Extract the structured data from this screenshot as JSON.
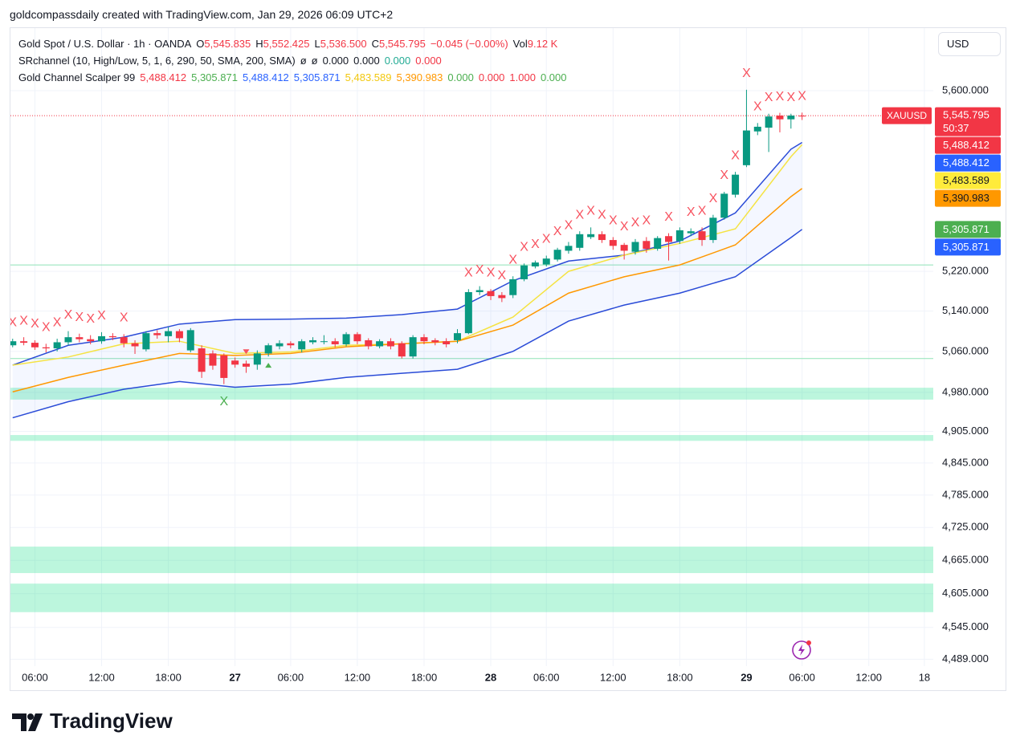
{
  "header": {
    "attribution": "goldcompassdaily created with TradingView.com, Jan 29, 2026 06:09 UTC+2"
  },
  "currency_button": "USD",
  "legend": {
    "symbol": "Gold Spot / U.S. Dollar · 1h · OANDA",
    "ohlc": [
      {
        "key": "O",
        "value": "5,545.835"
      },
      {
        "key": "H",
        "value": "5,552.425"
      },
      {
        "key": "L",
        "value": "5,536.500"
      },
      {
        "key": "C",
        "value": "5,545.795"
      }
    ],
    "change": "−0.045 (−0.00%)",
    "vol_key": "Vol",
    "vol": "9.12 K",
    "value_color": "#f23645",
    "indicators": [
      {
        "name": "SRchannel (10, High/Low, 5, 1, 6, 290, 50, SMA, 200, SMA)",
        "items": [
          {
            "label": "ø",
            "color": "#131722"
          },
          {
            "label": "ø",
            "color": "#131722"
          },
          {
            "label": "0.000",
            "color": "#131722"
          },
          {
            "label": "0.000",
            "color": "#131722"
          },
          {
            "label": "0.000",
            "color": "#22ab94"
          },
          {
            "label": "0.000",
            "color": "#f23645"
          }
        ]
      },
      {
        "name": "Gold Channel Scalper 99",
        "items": [
          {
            "label": "5,488.412",
            "color": "#f23645"
          },
          {
            "label": "5,305.871",
            "color": "#4caf50"
          },
          {
            "label": "5,488.412",
            "color": "#2962ff"
          },
          {
            "label": "5,305.871",
            "color": "#2962ff"
          },
          {
            "label": "5,483.589",
            "color": "#f2c80f"
          },
          {
            "label": "5,390.983",
            "color": "#ff9800"
          },
          {
            "label": "0.000",
            "color": "#4caf50"
          },
          {
            "label": "0.000",
            "color": "#f23645"
          },
          {
            "label": "1.000",
            "color": "#f23645"
          },
          {
            "label": "0.000",
            "color": "#4caf50"
          }
        ]
      }
    ]
  },
  "chart_data": {
    "type": "candlestick",
    "log_scale": true,
    "grid": true,
    "up_color": "#089981",
    "down_color": "#f23645",
    "x": [
      0,
      1,
      2,
      3,
      4,
      5,
      6,
      7,
      8,
      9,
      10,
      11,
      12,
      13,
      14,
      15,
      16,
      17,
      18,
      19,
      20,
      21,
      22,
      23,
      24,
      25,
      26,
      27,
      28,
      29,
      30,
      31,
      32,
      33,
      34,
      35,
      36,
      37,
      38,
      39,
      40,
      41,
      42,
      43,
      44,
      45,
      46,
      47,
      48,
      49,
      50,
      51,
      52,
      53,
      54,
      55,
      56,
      57,
      58,
      59,
      60,
      61,
      62,
      63,
      64,
      65,
      66,
      67,
      68,
      69,
      70,
      71
    ],
    "open": [
      5072,
      5080,
      5077,
      5068,
      5066,
      5078,
      5088,
      5084,
      5080,
      5090,
      5088,
      5076,
      5064,
      5096,
      5090,
      5100,
      5062,
      5066,
      5056,
      5052,
      5042,
      5036,
      5034,
      5056,
      5070,
      5076,
      5064,
      5078,
      5080,
      5080,
      5074,
      5094,
      5082,
      5070,
      5080,
      5076,
      5050,
      5088,
      5082,
      5080,
      5082,
      5096,
      5178,
      5180,
      5172,
      5172,
      5204,
      5230,
      5234,
      5244,
      5262,
      5268,
      5290,
      5296,
      5284,
      5274,
      5260,
      5282,
      5266,
      5292,
      5282,
      5298,
      5302,
      5284,
      5330,
      5378,
      5440,
      5512,
      5520,
      5546,
      5538,
      5545.835
    ],
    "high": [
      5085,
      5088,
      5082,
      5075,
      5085,
      5100,
      5095,
      5092,
      5098,
      5096,
      5094,
      5082,
      5100,
      5102,
      5108,
      5104,
      5106,
      5072,
      5062,
      5056,
      5048,
      5042,
      5062,
      5076,
      5082,
      5080,
      5084,
      5088,
      5092,
      5086,
      5098,
      5098,
      5086,
      5084,
      5086,
      5080,
      5092,
      5094,
      5086,
      5086,
      5104,
      5184,
      5190,
      5184,
      5178,
      5210,
      5236,
      5242,
      5252,
      5268,
      5280,
      5302,
      5310,
      5302,
      5290,
      5278,
      5286,
      5290,
      5292,
      5298,
      5310,
      5308,
      5310,
      5336,
      5384,
      5426,
      5602,
      5530,
      5550,
      5552,
      5550,
      5552.425
    ],
    "low": [
      5068,
      5072,
      5063,
      5058,
      5060,
      5072,
      5078,
      5074,
      5075,
      5082,
      5068,
      5055,
      5060,
      5085,
      5078,
      5078,
      5058,
      5008,
      5024,
      4996,
      5028,
      5018,
      5024,
      5050,
      5064,
      5066,
      5058,
      5074,
      5074,
      5068,
      5070,
      5074,
      5064,
      5066,
      5064,
      5046,
      5046,
      5074,
      5072,
      5068,
      5076,
      5094,
      5172,
      5162,
      5158,
      5166,
      5200,
      5226,
      5230,
      5240,
      5256,
      5262,
      5286,
      5278,
      5264,
      5244,
      5254,
      5258,
      5262,
      5242,
      5276,
      5292,
      5272,
      5278,
      5326,
      5372,
      5436,
      5504,
      5468,
      5510,
      5518,
      5536.5
    ],
    "close": [
      5080,
      5077,
      5068,
      5066,
      5078,
      5088,
      5084,
      5080,
      5090,
      5088,
      5076,
      5070,
      5096,
      5092,
      5100,
      5086,
      5102,
      5020,
      5032,
      5008,
      5034,
      5030,
      5056,
      5072,
      5076,
      5072,
      5080,
      5082,
      5080,
      5074,
      5094,
      5080,
      5070,
      5080,
      5070,
      5050,
      5088,
      5080,
      5078,
      5074,
      5096,
      5178,
      5182,
      5170,
      5166,
      5204,
      5232,
      5238,
      5246,
      5264,
      5272,
      5296,
      5296,
      5284,
      5272,
      5262,
      5280,
      5266,
      5288,
      5280,
      5304,
      5302,
      5284,
      5330,
      5380,
      5420,
      5514,
      5522,
      5544,
      5538,
      5546,
      5545.795
    ],
    "xlim": [
      -0.2,
      82.8
    ],
    "xticks": [
      {
        "value": 2,
        "label": "06:00"
      },
      {
        "value": 8,
        "label": "12:00"
      },
      {
        "value": 14,
        "label": "18:00"
      },
      {
        "value": 20,
        "label": "27"
      },
      {
        "value": 25,
        "label": "06:00"
      },
      {
        "value": 31,
        "label": "12:00"
      },
      {
        "value": 37,
        "label": "18:00"
      },
      {
        "value": 43,
        "label": "28"
      },
      {
        "value": 48,
        "label": "06:00"
      },
      {
        "value": 54,
        "label": "12:00"
      },
      {
        "value": 60,
        "label": "18:00"
      },
      {
        "value": 66,
        "label": "29"
      },
      {
        "value": 71,
        "label": "06:00"
      },
      {
        "value": 77,
        "label": "12:00"
      },
      {
        "value": 82,
        "label": "18"
      }
    ],
    "ylim": [
      4477,
      5738
    ],
    "yticks": [
      {
        "value": 5600,
        "label": "5,600.000"
      },
      {
        "value": 5220,
        "label": "5,220.000"
      },
      {
        "value": 5140,
        "label": "5,140.000"
      },
      {
        "value": 5060,
        "label": "5,060.000"
      },
      {
        "value": 4980,
        "label": "4,980.000"
      },
      {
        "value": 4905,
        "label": "4,905.000"
      },
      {
        "value": 4845,
        "label": "4,845.000"
      },
      {
        "value": 4785,
        "label": "4,785.000"
      },
      {
        "value": 4725,
        "label": "4,725.000"
      },
      {
        "value": 4665,
        "label": "4,665.000"
      },
      {
        "value": 4605,
        "label": "4,605.000"
      },
      {
        "value": 4545,
        "label": "4,545.000"
      },
      {
        "value": 4489,
        "label": "4,489.000"
      }
    ],
    "lines": [
      {
        "color": "#2a4bd7",
        "x": [
          0,
          5,
          10,
          15,
          20,
          25,
          30,
          35,
          40,
          45,
          50,
          55,
          60,
          65,
          70,
          71
        ],
        "values": [
          5033,
          5072,
          5088,
          5114,
          5123,
          5124,
          5126,
          5133,
          5144,
          5201,
          5241,
          5253,
          5282,
          5340,
          5474,
          5488.412
        ],
        "tag": "5,488.412",
        "tag_color": "#2962ff",
        "tag_text_color": "#ffffff"
      },
      {
        "color": "#f5e342",
        "x": [
          0,
          5,
          10,
          15,
          20,
          25,
          30,
          35,
          40,
          45,
          50,
          55,
          60,
          65,
          70,
          71
        ],
        "values": [
          5033,
          5049,
          5075,
          5080,
          5056,
          5059,
          5072,
          5075,
          5080,
          5128,
          5220,
          5253,
          5277,
          5307,
          5458,
          5483.589
        ],
        "tag": "5,483.589",
        "tag_color": "#ffeb3b",
        "tag_text_color": "#131722"
      },
      {
        "color": "#ff9800",
        "x": [
          0,
          5,
          10,
          15,
          20,
          25,
          30,
          35,
          40,
          45,
          50,
          55,
          60,
          65,
          70,
          71
        ],
        "values": [
          4981,
          5009,
          5033,
          5056,
          5052,
          5056,
          5069,
          5075,
          5080,
          5112,
          5176,
          5209,
          5233,
          5274,
          5374,
          5390.983
        ],
        "tag": "5,390.983",
        "tag_color": "#ff9800",
        "tag_text_color": "#131722"
      },
      {
        "color": "#2a4bd7",
        "x": [
          0,
          5,
          10,
          15,
          20,
          25,
          30,
          35,
          40,
          45,
          50,
          55,
          60,
          65,
          70,
          71
        ],
        "values": [
          4931,
          4962,
          4986,
          5001,
          4990,
          4996,
          5009,
          5017,
          5025,
          5060,
          5120,
          5152,
          5176,
          5209,
          5289,
          5305.871
        ],
        "tag": "5,305.871",
        "tag_color": "#2962ff",
        "tag_text_color": "#ffffff"
      }
    ],
    "channel_fill": "rgba(41,98,255,0.05)",
    "zones": [
      [
        4966,
        4989
      ],
      [
        4887,
        4898
      ],
      [
        4642,
        4690
      ],
      [
        4572,
        4623
      ]
    ],
    "zone_color": "rgba(8,220,130,0.27)",
    "levels": [
      5233,
      5046
    ],
    "level_color": "#8fe3b6",
    "extra_tags": [
      {
        "label": "5,488.412",
        "value": 5488.412,
        "color": "#f23645",
        "text_color": "#ffffff"
      },
      {
        "label": "5,305.871",
        "value": 5305.871,
        "color": "#4caf50",
        "text_color": "#ffffff"
      }
    ],
    "symbol_tag": "XAUUSD",
    "price_tag": "5,545.795",
    "countdown": "50:37",
    "price_color": "#f23645",
    "signals": {
      "sell_label": "X",
      "sell_color": "#f7525f",
      "sell_x": [
        0,
        1,
        2,
        3,
        4,
        5,
        6,
        7,
        8,
        10,
        41,
        42,
        43,
        44,
        45,
        46,
        47,
        48,
        49,
        50,
        51,
        52,
        53,
        54,
        55,
        56,
        57,
        59,
        61,
        62,
        63,
        64,
        65,
        66,
        67,
        68,
        69,
        70,
        71
      ],
      "buy_label": "X",
      "buy_color": "#4caf50",
      "buy_x": [
        19
      ],
      "down_x": [
        21
      ],
      "up_x": [
        23
      ]
    }
  },
  "footer": {
    "logo": "TradingView"
  }
}
